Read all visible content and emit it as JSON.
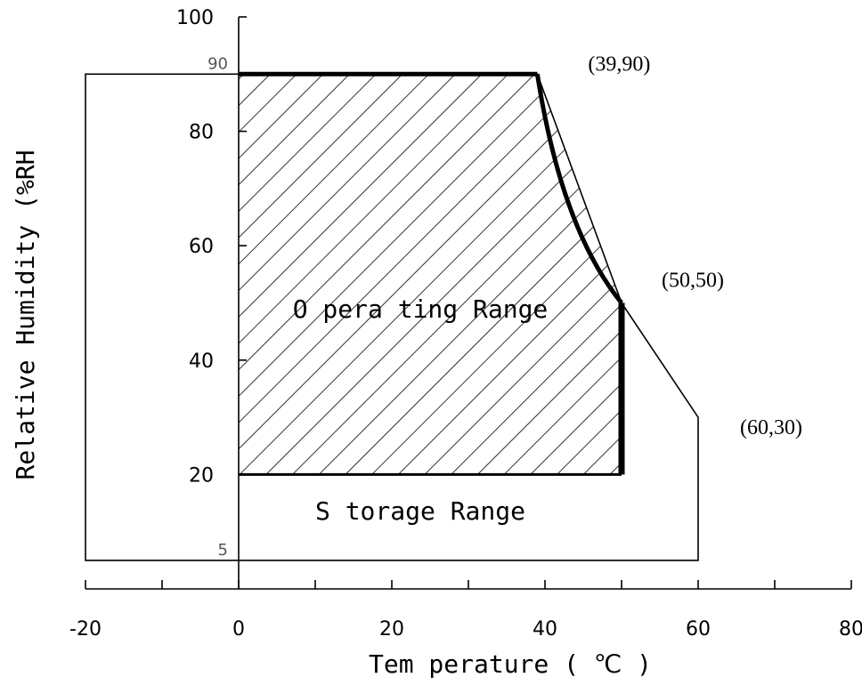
{
  "chart_data": {
    "type": "area",
    "title": "",
    "xlabel": "Tem perature ( ℃ )",
    "ylabel": "Relative Humidity (%RH",
    "xlim": [
      -20,
      80
    ],
    "ylim": [
      0,
      100
    ],
    "x_ticks": [
      -20,
      0,
      20,
      40,
      60,
      80
    ],
    "x_ticks_minor": [
      -10,
      10,
      30,
      50,
      70
    ],
    "y_ticks": [
      20,
      40,
      60,
      80,
      100
    ],
    "y_ref_labels": [
      5,
      90
    ],
    "grid": false,
    "regions": [
      {
        "name": "Storage Range",
        "label": "S torage Range",
        "fill": "none",
        "points": [
          [
            -20,
            5
          ],
          [
            -20,
            90
          ],
          [
            39,
            90
          ],
          [
            50,
            50
          ],
          [
            60,
            30
          ],
          [
            60,
            5
          ]
        ]
      },
      {
        "name": "Operating Range",
        "label": "O pera ting Range",
        "fill": "hatched",
        "points": [
          [
            0,
            20
          ],
          [
            0,
            90
          ],
          [
            39,
            90
          ],
          [
            50,
            50
          ],
          [
            50,
            20
          ]
        ]
      }
    ],
    "annotations": [
      {
        "text": "(39,90)",
        "x": 39,
        "y": 90
      },
      {
        "text": "(50,50)",
        "x": 50,
        "y": 50
      },
      {
        "text": "(60,30)",
        "x": 60,
        "y": 30
      }
    ]
  },
  "colors": {
    "line": "#000000",
    "hatch": "#000000",
    "ref_label": "#555555"
  }
}
